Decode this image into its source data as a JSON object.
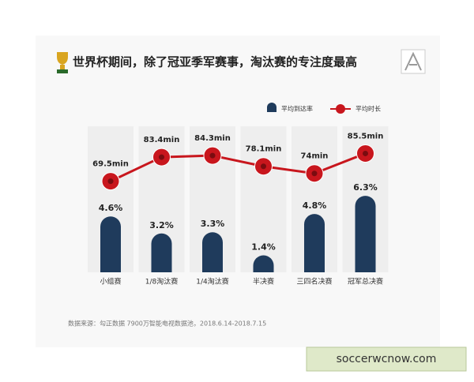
{
  "chart_data": {
    "type": "bar",
    "title": "世界杯期间，除了冠亚季军赛事，淘汰赛的专注度最高",
    "categories": [
      "小组赛",
      "1/8淘汰赛",
      "1/4淘汰赛",
      "半决赛",
      "三四名决赛",
      "冠军总决赛"
    ],
    "series": [
      {
        "name": "平均到达率",
        "color": "#1f3b5c",
        "values": [
          4.6,
          3.2,
          3.3,
          1.4,
          4.8,
          6.3
        ],
        "value_labels": [
          "4.6%",
          "3.2%",
          "3.3%",
          "1.4%",
          "4.8%",
          "6.3%"
        ]
      },
      {
        "name": "平均时长",
        "type": "line",
        "axis": "y2",
        "color": "#c8161d",
        "values": [
          69.5,
          83.4,
          84.3,
          78.1,
          74,
          85.5
        ],
        "value_labels": [
          "69.5min",
          "83.4min",
          "84.3min",
          "78.1min",
          "74min",
          "85.5min"
        ]
      }
    ],
    "ylim": [
      0,
      13
    ],
    "y2lim": [
      17,
      108
    ],
    "source": "数据来源：勾正数据 7900万智能电视数据池，2018.6.14-2018.7.15",
    "watermark": "soccerwcnow.com"
  }
}
